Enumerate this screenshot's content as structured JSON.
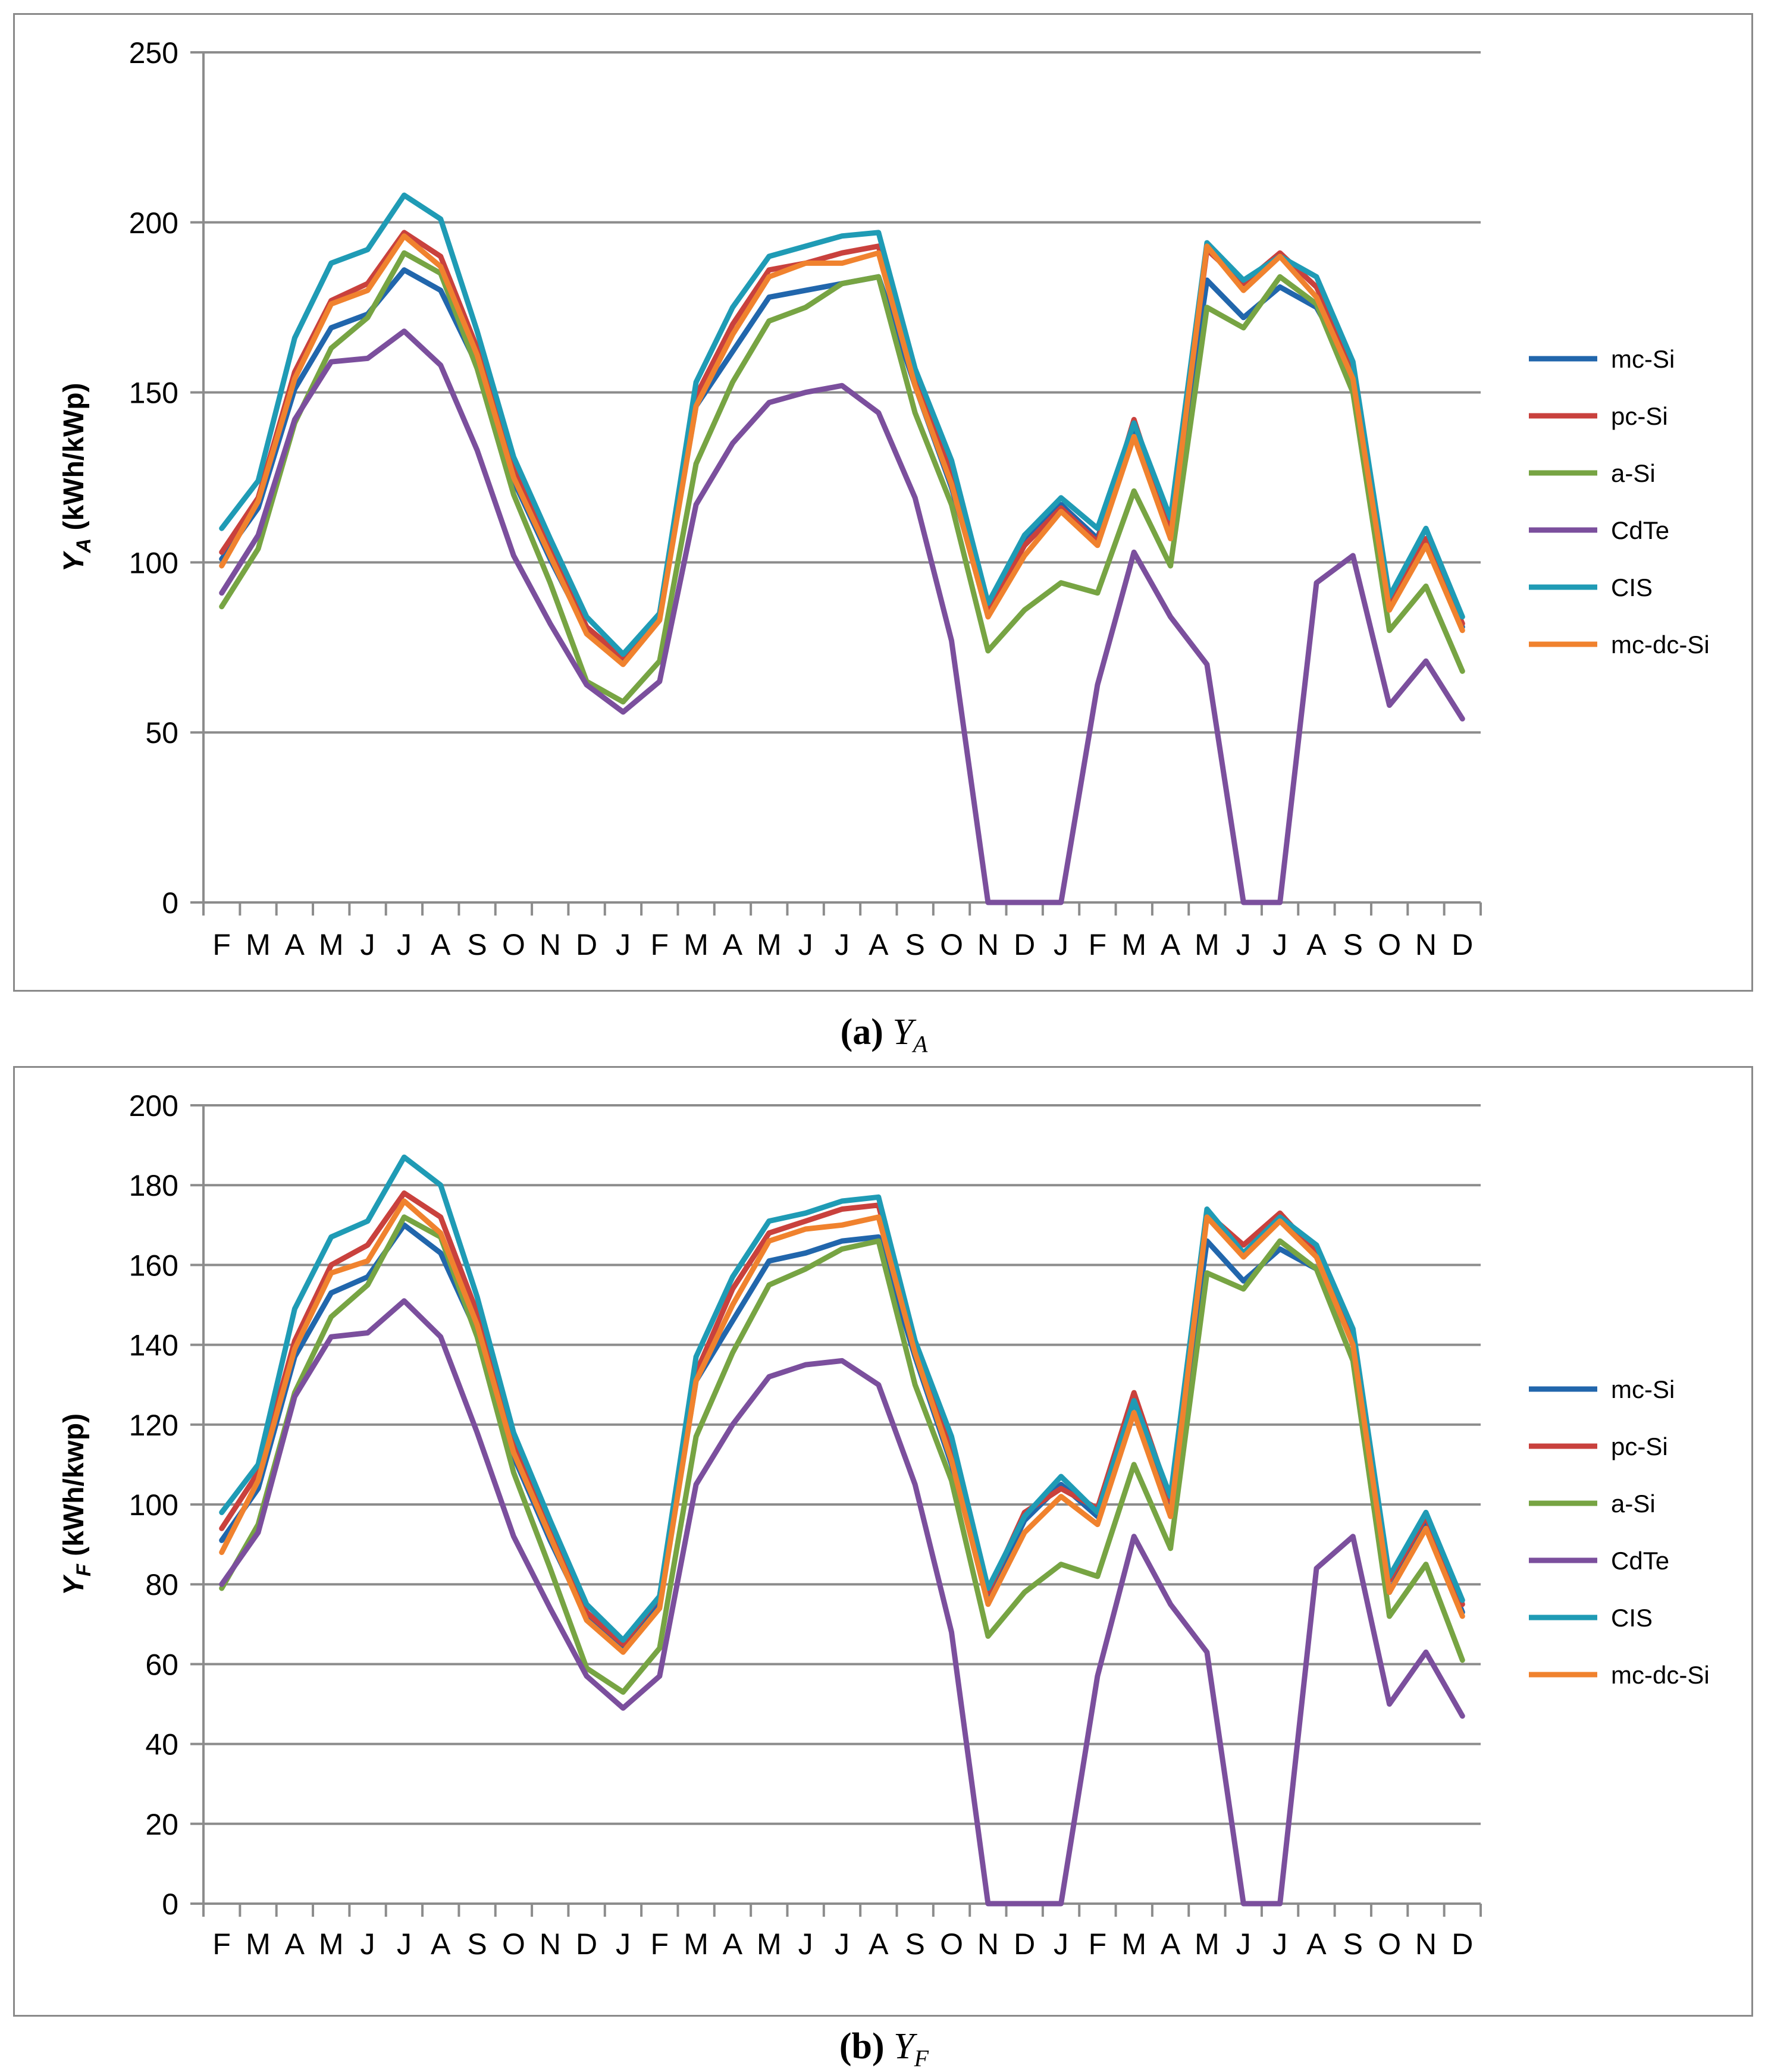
{
  "chart_data": [
    {
      "type": "line",
      "id": "a",
      "caption_label": "(a)",
      "caption_symbol": "Y",
      "caption_sub": "A",
      "ylabel_main": "Y",
      "ylabel_sub": "A",
      "ylabel_rest": " (kWh/kWp)",
      "ylim": [
        0,
        250
      ],
      "yticks": [
        0,
        50,
        100,
        150,
        200,
        250
      ],
      "grid": true,
      "legend": "right",
      "categories": [
        "F",
        "M",
        "A",
        "M",
        "J",
        "J",
        "A",
        "S",
        "O",
        "N",
        "D",
        "J",
        "F",
        "M",
        "A",
        "M",
        "J",
        "J",
        "A",
        "S",
        "O",
        "N",
        "D",
        "J",
        "F",
        "M",
        "A",
        "M",
        "J",
        "J",
        "A",
        "S",
        "O",
        "N",
        "D"
      ],
      "series": [
        {
          "name": "mc-Si",
          "color": "#2166ac",
          "values": [
            101,
            116,
            151,
            169,
            173,
            186,
            180,
            158,
            124,
            101,
            80,
            71,
            84,
            146,
            162,
            178,
            180,
            182,
            184,
            152,
            122,
            86,
            106,
            117,
            107,
            140,
            110,
            183,
            172,
            181,
            175,
            156,
            87,
            106,
            81
          ]
        },
        {
          "name": "pc-Si",
          "color": "#c9413d",
          "values": [
            103,
            119,
            156,
            177,
            182,
            197,
            190,
            163,
            128,
            104,
            81,
            72,
            85,
            149,
            170,
            186,
            188,
            191,
            193,
            154,
            126,
            86,
            105,
            116,
            106,
            142,
            109,
            192,
            182,
            191,
            181,
            158,
            88,
            107,
            82
          ]
        },
        {
          "name": "a-Si",
          "color": "#77a443",
          "values": [
            87,
            104,
            141,
            163,
            172,
            191,
            185,
            157,
            120,
            94,
            65,
            59,
            71,
            129,
            153,
            171,
            175,
            182,
            184,
            144,
            117,
            74,
            86,
            94,
            91,
            121,
            99,
            175,
            169,
            184,
            176,
            150,
            80,
            93,
            68
          ]
        },
        {
          "name": "CdTe",
          "color": "#7b4f9d",
          "values": [
            91,
            108,
            142,
            159,
            160,
            168,
            158,
            133,
            102,
            82,
            64,
            56,
            65,
            117,
            135,
            147,
            150,
            152,
            144,
            119,
            77,
            0,
            0,
            0,
            64,
            103,
            84,
            70,
            0,
            0,
            94,
            102,
            58,
            71,
            54
          ]
        },
        {
          "name": "CIS",
          "color": "#1f9bb5",
          "values": [
            110,
            124,
            166,
            188,
            192,
            208,
            201,
            168,
            131,
            107,
            84,
            73,
            85,
            153,
            175,
            190,
            193,
            196,
            197,
            157,
            130,
            88,
            108,
            119,
            110,
            141,
            113,
            194,
            183,
            190,
            184,
            159,
            90,
            110,
            84
          ]
        },
        {
          "name": "mc-dc-Si",
          "color": "#f0822e",
          "values": [
            99,
            118,
            154,
            176,
            180,
            196,
            187,
            161,
            125,
            102,
            79,
            70,
            83,
            146,
            167,
            184,
            188,
            188,
            191,
            152,
            123,
            84,
            102,
            115,
            105,
            137,
            107,
            193,
            180,
            190,
            178,
            154,
            86,
            105,
            80
          ]
        }
      ]
    },
    {
      "type": "line",
      "id": "b",
      "caption_label": "(b)",
      "caption_symbol": "Y",
      "caption_sub": "F",
      "ylabel_main": "Y",
      "ylabel_sub": "F",
      "ylabel_rest": " (kWh/kwp)",
      "ylim": [
        0,
        200
      ],
      "yticks": [
        0,
        20,
        40,
        60,
        80,
        100,
        120,
        140,
        160,
        180,
        200
      ],
      "grid": true,
      "legend": "right",
      "categories": [
        "F",
        "M",
        "A",
        "M",
        "J",
        "J",
        "A",
        "S",
        "O",
        "N",
        "D",
        "J",
        "F",
        "M",
        "A",
        "M",
        "J",
        "J",
        "A",
        "S",
        "O",
        "N",
        "D",
        "J",
        "F",
        "M",
        "A",
        "M",
        "J",
        "J",
        "A",
        "S",
        "O",
        "N",
        "D"
      ],
      "series": [
        {
          "name": "mc-Si",
          "color": "#2166ac",
          "values": [
            91,
            104,
            137,
            153,
            157,
            170,
            163,
            143,
            112,
            91,
            72,
            64,
            75,
            131,
            146,
            161,
            163,
            166,
            167,
            137,
            110,
            77,
            96,
            105,
            97,
            126,
            99,
            166,
            156,
            164,
            159,
            141,
            78,
            96,
            73
          ]
        },
        {
          "name": "pc-Si",
          "color": "#c9413d",
          "values": [
            94,
            108,
            141,
            160,
            165,
            178,
            172,
            148,
            116,
            94,
            73,
            65,
            77,
            133,
            154,
            168,
            171,
            174,
            175,
            139,
            114,
            78,
            98,
            104,
            99,
            128,
            101,
            173,
            165,
            173,
            163,
            142,
            81,
            97,
            75
          ]
        },
        {
          "name": "a-Si",
          "color": "#77a443",
          "values": [
            79,
            95,
            128,
            147,
            155,
            172,
            167,
            142,
            108,
            84,
            59,
            53,
            64,
            117,
            138,
            155,
            159,
            164,
            166,
            130,
            106,
            67,
            78,
            85,
            82,
            110,
            89,
            158,
            154,
            166,
            159,
            136,
            72,
            85,
            61
          ]
        },
        {
          "name": "CdTe",
          "color": "#7b4f9d",
          "values": [
            80,
            93,
            127,
            142,
            143,
            151,
            142,
            118,
            92,
            74,
            57,
            49,
            57,
            105,
            120,
            132,
            135,
            136,
            130,
            105,
            68,
            0,
            0,
            0,
            57,
            92,
            75,
            63,
            0,
            0,
            84,
            92,
            50,
            63,
            47
          ]
        },
        {
          "name": "CIS",
          "color": "#1f9bb5",
          "values": [
            98,
            110,
            149,
            167,
            171,
            187,
            180,
            152,
            118,
            96,
            75,
            66,
            77,
            137,
            157,
            171,
            173,
            176,
            177,
            141,
            117,
            79,
            97,
            107,
            98,
            126,
            102,
            174,
            163,
            172,
            165,
            144,
            82,
            98,
            76
          ]
        },
        {
          "name": "mc-dc-Si",
          "color": "#f0822e",
          "values": [
            88,
            106,
            139,
            158,
            161,
            176,
            168,
            145,
            113,
            92,
            71,
            63,
            74,
            131,
            150,
            166,
            169,
            170,
            172,
            138,
            111,
            75,
            93,
            102,
            95,
            123,
            97,
            172,
            162,
            171,
            162,
            140,
            78,
            94,
            72
          ]
        }
      ]
    }
  ]
}
